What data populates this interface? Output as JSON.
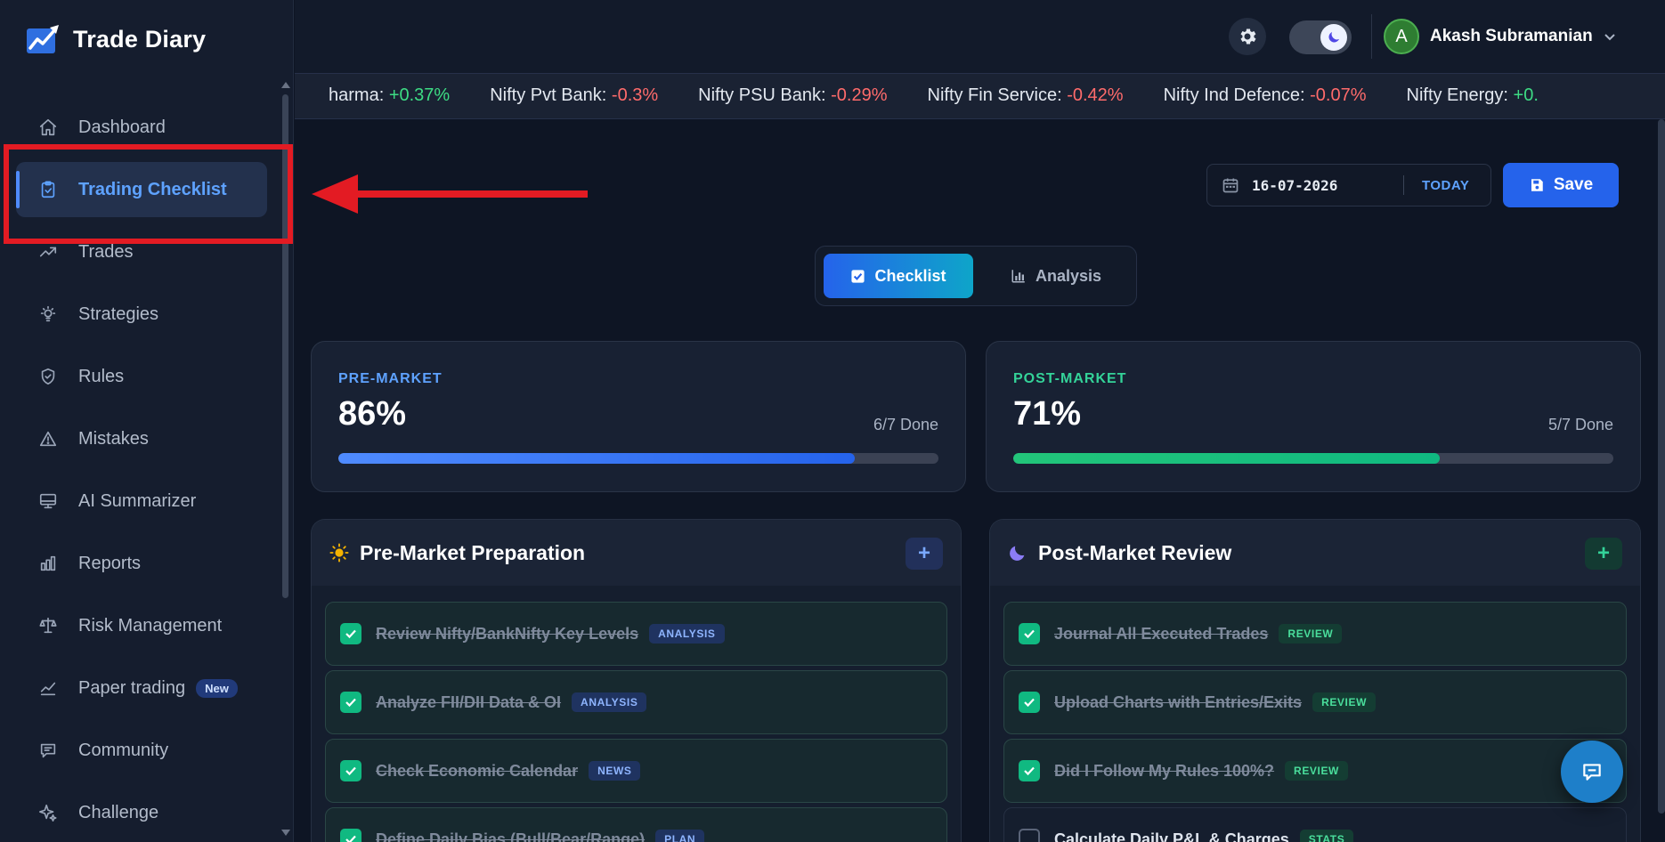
{
  "app": {
    "name": "Trade Diary"
  },
  "sidebar": {
    "items": [
      {
        "label": "Dashboard",
        "icon": "home-icon"
      },
      {
        "label": "Trading Checklist",
        "icon": "clipboard-check-icon",
        "active": true
      },
      {
        "label": "Trades",
        "icon": "trending-up-icon"
      },
      {
        "label": "Strategies",
        "icon": "lightbulb-icon"
      },
      {
        "label": "Rules",
        "icon": "shield-check-icon"
      },
      {
        "label": "Mistakes",
        "icon": "warning-icon"
      },
      {
        "label": "AI Summarizer",
        "icon": "monitor-icon"
      },
      {
        "label": "Reports",
        "icon": "bar-chart-icon"
      },
      {
        "label": "Risk Management",
        "icon": "scale-icon"
      },
      {
        "label": "Paper trading",
        "icon": "line-chart-icon",
        "badge": "New"
      },
      {
        "label": "Community",
        "icon": "message-icon"
      },
      {
        "label": "Challenge",
        "icon": "sparkle-icon"
      }
    ]
  },
  "header": {
    "user_initial": "A",
    "user_name": "Akash Subramanian"
  },
  "ticker": [
    {
      "name": "harma:",
      "change": "+0.37%",
      "dir": "pos"
    },
    {
      "name": "Nifty Pvt Bank:",
      "change": "-0.3%",
      "dir": "neg"
    },
    {
      "name": "Nifty PSU Bank:",
      "change": "-0.29%",
      "dir": "neg"
    },
    {
      "name": "Nifty Fin Service:",
      "change": "-0.42%",
      "dir": "neg"
    },
    {
      "name": "Nifty Ind Defence:",
      "change": "-0.07%",
      "dir": "neg"
    },
    {
      "name": "Nifty Energy:",
      "change": "+0.",
      "dir": "pos"
    }
  ],
  "toolbar": {
    "date": "16-07-2026",
    "today_label": "TODAY",
    "save_label": "Save"
  },
  "tabs": {
    "checklist": "Checklist",
    "analysis": "Analysis"
  },
  "progress": {
    "pre": {
      "label": "PRE-MARKET",
      "percent": "86%",
      "done": "6/7 Done",
      "fraction": 0.86
    },
    "post": {
      "label": "POST-MARKET",
      "percent": "71%",
      "done": "5/7 Done",
      "fraction": 0.71
    }
  },
  "sections": {
    "pre": {
      "title": "Pre-Market Preparation",
      "add": "+",
      "items": [
        {
          "text": "Review Nifty/BankNifty Key Levels",
          "tag": "ANALYSIS",
          "checked": true
        },
        {
          "text": "Analyze FII/DII Data & OI",
          "tag": "ANALYSIS",
          "checked": true
        },
        {
          "text": "Check Economic Calendar",
          "tag": "NEWS",
          "checked": true
        },
        {
          "text": "Define Daily Bias (Bull/Bear/Range)",
          "tag": "PLAN",
          "checked": true
        }
      ]
    },
    "post": {
      "title": "Post-Market Review",
      "add": "+",
      "items": [
        {
          "text": "Journal All Executed Trades",
          "tag": "REVIEW",
          "checked": true
        },
        {
          "text": "Upload Charts with Entries/Exits",
          "tag": "REVIEW",
          "checked": true
        },
        {
          "text": "Did I Follow My Rules 100%?",
          "tag": "REVIEW",
          "checked": true
        },
        {
          "text": "Calculate Daily P&L & Charges",
          "tag": "STATS",
          "checked": false
        }
      ]
    }
  },
  "colors": {
    "accent_blue": "#2563eb",
    "accent_green": "#10b981",
    "highlight_red": "#e31b23"
  }
}
